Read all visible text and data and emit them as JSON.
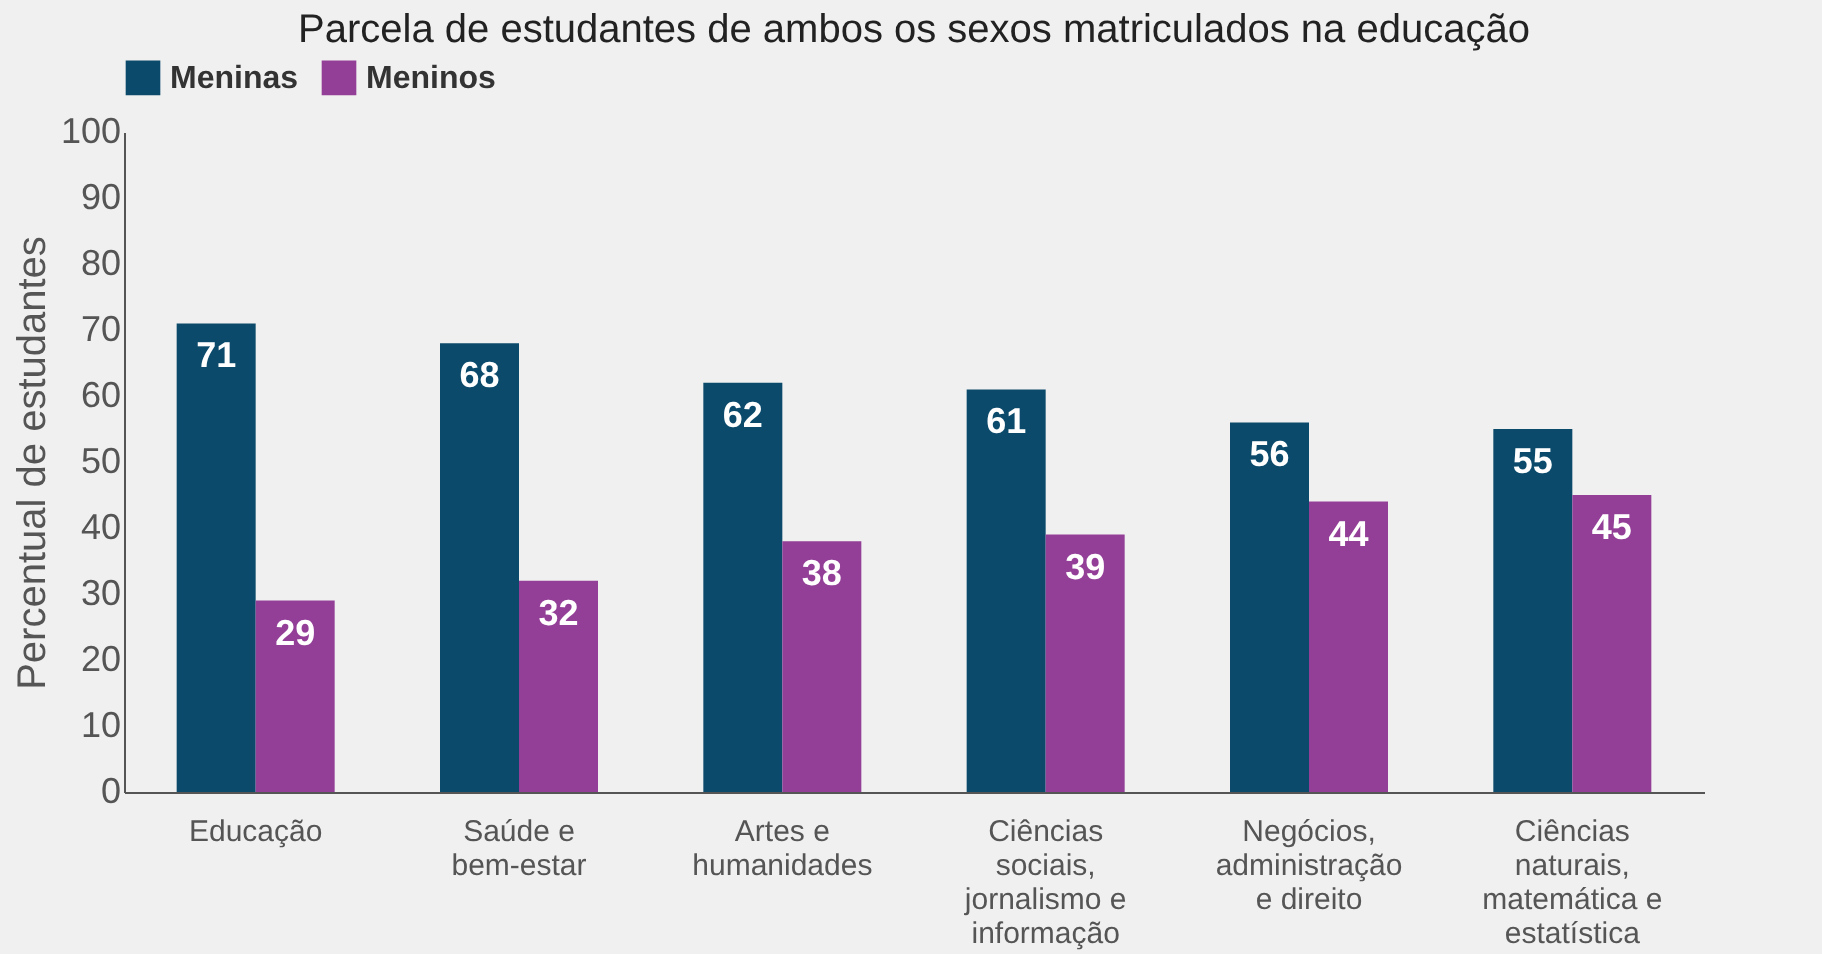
{
  "chart_data": {
    "type": "bar",
    "title": "Parcela de estudantes de ambos os sexos matriculados na educação",
    "ylabel": "Percentual de estudantes",
    "categories": [
      "Educação",
      "Saúde e bem-estar",
      "Artes e humanidades",
      "Ciências sociais, jornalismo e informação",
      "Negócios, administração e direito",
      "Ciências naturais, matemática e estatística"
    ],
    "series": [
      {
        "name": "Meninas",
        "color": "#0b4a6b",
        "values": [
          71,
          68,
          62,
          61,
          56,
          55
        ]
      },
      {
        "name": "Meninos",
        "color": "#933f97",
        "values": [
          29,
          32,
          38,
          39,
          44,
          45
        ]
      }
    ],
    "ylim": [
      0,
      100
    ],
    "yticks": [
      0,
      10,
      20,
      30,
      40,
      50,
      60,
      70,
      80,
      90,
      100
    ],
    "grid": false,
    "legend": "top",
    "data_labels": true
  }
}
